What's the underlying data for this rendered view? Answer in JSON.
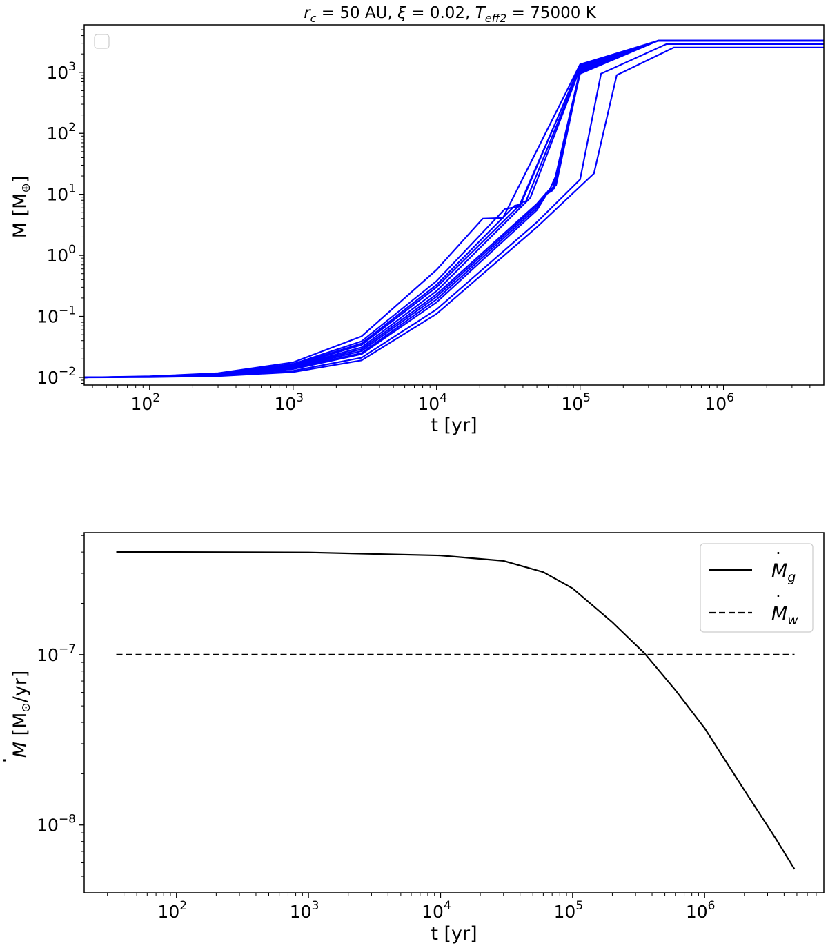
{
  "chart_data": [
    {
      "type": "line",
      "title_parts": {
        "rc_symbol": "r",
        "rc_sub": "c",
        "rc_value": " =  50 AU, ",
        "xi_symbol": "ξ",
        "xi_value": " =  0.02, ",
        "teff_symbol": "T",
        "teff_sub": "eff2",
        "teff_value": " = 75000 K"
      },
      "xlabel": "t [yr]",
      "ylabel_prefix": "M [M",
      "ylabel_symbol": "⊕",
      "ylabel_suffix": "]",
      "xscale": "log",
      "yscale": "log",
      "xlim": [
        35,
        5000000
      ],
      "ylim": [
        0.0075,
        6000
      ],
      "x_ticks": [
        {
          "value": 100,
          "base": "10",
          "exp": "2"
        },
        {
          "value": 1000,
          "base": "10",
          "exp": "3"
        },
        {
          "value": 10000,
          "base": "10",
          "exp": "4"
        },
        {
          "value": 100000,
          "base": "10",
          "exp": "5"
        },
        {
          "value": 1000000,
          "base": "10",
          "exp": "6"
        }
      ],
      "y_ticks": [
        {
          "value": 0.01,
          "base": "10",
          "exp": "−2"
        },
        {
          "value": 0.1,
          "base": "10",
          "exp": "−1"
        },
        {
          "value": 1,
          "base": "10",
          "exp": "0"
        },
        {
          "value": 10,
          "base": "10",
          "exp": "1"
        },
        {
          "value": 100,
          "base": "10",
          "exp": "2"
        },
        {
          "value": 1000,
          "base": "10",
          "exp": "3"
        }
      ],
      "legend": "top-left (empty)",
      "grid": false,
      "line_color": "#0000ff",
      "series": [
        {
          "x": [
            35,
            100,
            300,
            1000,
            3000,
            10000,
            21000,
            29000,
            100000,
            350000,
            5000000
          ],
          "y": [
            0.01,
            0.0104,
            0.0117,
            0.0176,
            0.047,
            0.58,
            4.0,
            4.1,
            1350,
            3300,
            3300
          ]
        },
        {
          "x": [
            35,
            100,
            300,
            1000,
            3000,
            10000,
            30000,
            38000,
            100000,
            350000,
            5000000
          ],
          "y": [
            0.01,
            0.0103,
            0.0114,
            0.0166,
            0.039,
            0.38,
            5.8,
            6.3,
            1300,
            3300,
            3300
          ]
        },
        {
          "x": [
            35,
            100,
            300,
            1000,
            3000,
            10000,
            35000,
            38000,
            100000,
            350000,
            5000000
          ],
          "y": [
            0.01,
            0.0103,
            0.0113,
            0.016,
            0.036,
            0.33,
            6.5,
            6.8,
            1250,
            3300,
            3300
          ]
        },
        {
          "x": [
            35,
            100,
            300,
            1000,
            3000,
            10000,
            40000,
            42000,
            100000,
            350000,
            5000000
          ],
          "y": [
            0.01,
            0.0103,
            0.0112,
            0.0156,
            0.034,
            0.3,
            7.5,
            7.7,
            1200,
            3300,
            3300
          ]
        },
        {
          "x": [
            35,
            100,
            300,
            1000,
            3000,
            10000,
            45000,
            100000,
            350000,
            5000000
          ],
          "y": [
            0.01,
            0.0103,
            0.0111,
            0.0152,
            0.031,
            0.26,
            8.8,
            1150,
            3300,
            3300
          ]
        },
        {
          "x": [
            35,
            100,
            300,
            1000,
            3000,
            10000,
            50000,
            56000,
            64000,
            100000,
            350000,
            5000000
          ],
          "y": [
            0.01,
            0.0102,
            0.011,
            0.0148,
            0.029,
            0.23,
            7.0,
            9.5,
            11.5,
            1100,
            3300,
            3300
          ]
        },
        {
          "x": [
            35,
            100,
            300,
            1000,
            3000,
            10000,
            50000,
            58000,
            66000,
            100000,
            350000,
            5000000
          ],
          "y": [
            0.01,
            0.0102,
            0.0109,
            0.0144,
            0.027,
            0.21,
            6.5,
            10.5,
            12.5,
            1050,
            3300,
            3300
          ]
        },
        {
          "x": [
            35,
            100,
            300,
            1000,
            3000,
            10000,
            50000,
            60000,
            68000,
            100000,
            350000,
            5000000
          ],
          "y": [
            0.01,
            0.0102,
            0.0108,
            0.014,
            0.025,
            0.19,
            6.0,
            11.5,
            14.0,
            1000,
            3300,
            3300
          ]
        },
        {
          "x": [
            35,
            100,
            300,
            1000,
            3000,
            10000,
            50000,
            62000,
            69000,
            100000,
            350000,
            5000000
          ],
          "y": [
            0.01,
            0.0102,
            0.0107,
            0.0137,
            0.024,
            0.17,
            5.5,
            12.5,
            22.0,
            950,
            3300,
            3300
          ]
        },
        {
          "x": [
            35,
            100,
            300,
            1000,
            3000,
            10000,
            50000,
            100000,
            140000,
            400000,
            5000000
          ],
          "y": [
            0.01,
            0.0102,
            0.0106,
            0.0128,
            0.021,
            0.13,
            3.5,
            17.5,
            950,
            2900,
            2900
          ]
        },
        {
          "x": [
            35,
            100,
            300,
            1000,
            3000,
            10000,
            50000,
            125000,
            180000,
            450000,
            5000000
          ],
          "y": [
            0.01,
            0.0101,
            0.0105,
            0.0122,
            0.019,
            0.11,
            2.9,
            22.0,
            900,
            2550,
            2550
          ]
        }
      ]
    },
    {
      "type": "line",
      "xlabel": "t [yr]",
      "ylabel_prefix": "M",
      "ylabel_dot": "·",
      "ylabel_rest": " [M",
      "ylabel_symbol": "⊙",
      "ylabel_suffix": "/yr]",
      "xscale": "log",
      "yscale": "log",
      "xlim": [
        20,
        8000000
      ],
      "ylim": [
        4e-09,
        5.2e-07
      ],
      "x_ticks": [
        {
          "value": 100,
          "base": "10",
          "exp": "2"
        },
        {
          "value": 1000,
          "base": "10",
          "exp": "3"
        },
        {
          "value": 10000,
          "base": "10",
          "exp": "4"
        },
        {
          "value": 100000,
          "base": "10",
          "exp": "5"
        },
        {
          "value": 1000000,
          "base": "10",
          "exp": "6"
        }
      ],
      "y_ticks": [
        {
          "value": 1e-07,
          "base": "10",
          "exp": "−7"
        },
        {
          "value": 1e-08,
          "base": "10",
          "exp": "−8"
        }
      ],
      "legend": "top-right",
      "grid": false,
      "series": [
        {
          "name_symbol": "M",
          "name_sub": "g",
          "style": "solid",
          "color": "#000000",
          "x": [
            35,
            100,
            1000,
            10000,
            30000,
            60000,
            100000,
            200000,
            350000,
            600000,
            1000000,
            2000000,
            3500000,
            4800000
          ],
          "y": [
            4e-07,
            4e-07,
            3.98e-07,
            3.82e-07,
            3.55e-07,
            3.05e-07,
            2.45e-07,
            1.55e-07,
            1.02e-07,
            6.2e-08,
            3.7e-08,
            1.6e-08,
            8.2e-09,
            5.5e-09
          ]
        },
        {
          "name_symbol": "M",
          "name_sub": "w",
          "style": "dashed",
          "color": "#000000",
          "x": [
            35,
            4800000
          ],
          "y": [
            1e-07,
            1e-07
          ]
        }
      ]
    }
  ]
}
